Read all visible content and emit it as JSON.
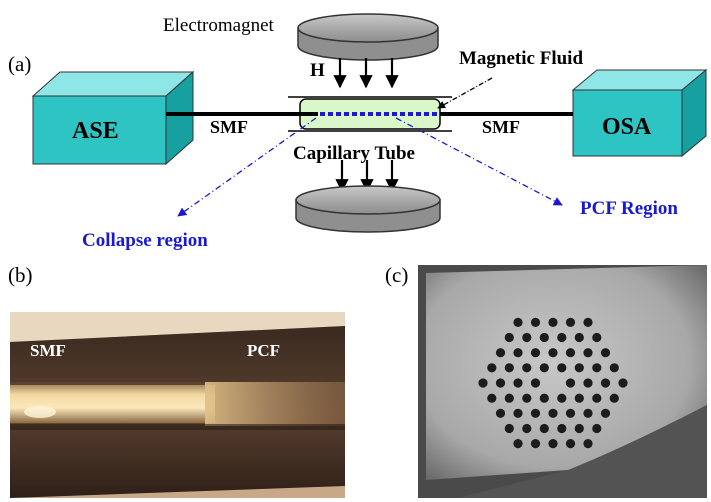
{
  "panels": {
    "a": "(a)",
    "b": "(b)",
    "c": "(c)"
  },
  "setup": {
    "electromagnet": "Electromagnet",
    "field": "H",
    "magnetic_fluid": "Magnetic Fluid",
    "source": "ASE",
    "analyzer": "OSA",
    "fiber_left": "SMF",
    "fiber_right": "SMF",
    "capillary": "Capillary Tube",
    "collapse": "Collapse region",
    "pcf_region": "PCF Region"
  },
  "photo_b": {
    "left_label": "SMF",
    "right_label": "PCF"
  },
  "colors": {
    "box_front": "#2ec4c4",
    "box_top": "#8ee6e6",
    "box_side": "#16a0a0",
    "magnet": "#a9a9a9",
    "fluid": "#d9f7c8",
    "dash_blue": "#1a1acc"
  }
}
